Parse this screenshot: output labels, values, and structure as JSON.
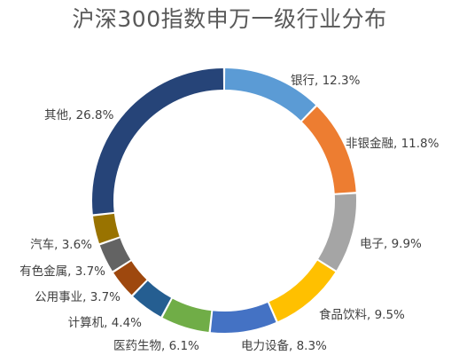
{
  "chart_data": {
    "type": "pie",
    "donut": true,
    "title": "沪深300指数申万一级行业分布",
    "slices": [
      {
        "label": "银行",
        "value": 12.3,
        "display": "银行, 12.3%",
        "color": "#5B9BD5"
      },
      {
        "label": "非银金融",
        "value": 11.8,
        "display": "非银金融, 11.8%",
        "color": "#ED7D31"
      },
      {
        "label": "电子",
        "value": 9.9,
        "display": "电子, 9.9%",
        "color": "#A5A5A5"
      },
      {
        "label": "食品饮料",
        "value": 9.5,
        "display": "食品饮料, 9.5%",
        "color": "#FFC000"
      },
      {
        "label": "电力设备",
        "value": 8.3,
        "display": "电力设备, 8.3%",
        "color": "#4472C4"
      },
      {
        "label": "医药生物",
        "value": 6.1,
        "display": "医药生物, 6.1%",
        "color": "#70AD47"
      },
      {
        "label": "计算机",
        "value": 4.4,
        "display": "计算机, 4.4%",
        "color": "#255E91"
      },
      {
        "label": "公用事业",
        "value": 3.7,
        "display": "公用事业, 3.7%",
        "color": "#9E480E"
      },
      {
        "label": "有色金属",
        "value": 3.7,
        "display": "有色金属, 3.7%",
        "color": "#636363"
      },
      {
        "label": "汽车",
        "value": 3.6,
        "display": "汽车, 3.6%",
        "color": "#997300"
      },
      {
        "label": "其他",
        "value": 26.8,
        "display": "其他, 26.8%",
        "color": "#264478"
      }
    ]
  }
}
